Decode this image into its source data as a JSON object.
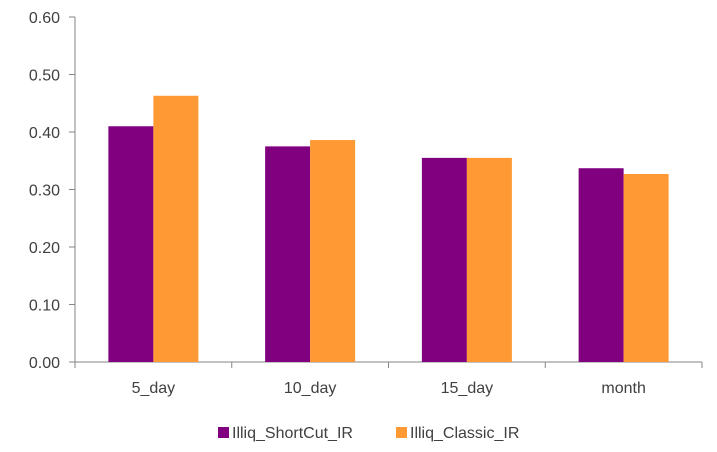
{
  "chart_data": {
    "type": "bar",
    "title": "",
    "xlabel": "",
    "ylabel": "",
    "categories": [
      "5_day",
      "10_day",
      "15_day",
      "month"
    ],
    "series": [
      {
        "name": "Illiq_ShortCut_IR",
        "color": "#800080",
        "values": [
          0.41,
          0.375,
          0.355,
          0.337
        ]
      },
      {
        "name": "Illiq_Classic_IR",
        "color": "#ff9933",
        "values": [
          0.463,
          0.386,
          0.355,
          0.327
        ]
      }
    ],
    "ylim": [
      0,
      0.6
    ],
    "yticks": [
      "0.00",
      "0.10",
      "0.20",
      "0.30",
      "0.40",
      "0.50",
      "0.60"
    ],
    "grid": false,
    "legend_position": "bottom"
  }
}
